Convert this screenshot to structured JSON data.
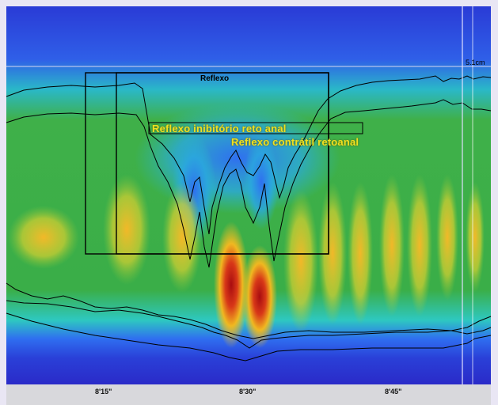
{
  "overlay": {
    "reflex_box_title": "Reflexo",
    "rair_label": "Reflexo inibitório reto anal",
    "rac_label": "Reflexo contrátil retoanal",
    "depth_marker": "5.1cm"
  },
  "time_axis": {
    "ticks": [
      "8'15\"",
      "8'30\"",
      "8'45\""
    ]
  },
  "colors": {
    "background_blue": "#3a3ad0",
    "low_pressure": "#1e6cf0",
    "mid_pressure": "#3ab04a",
    "high_pressure": "#f0c020",
    "peak_pressure": "#b01010",
    "annotation_text": "#f0e020"
  }
}
